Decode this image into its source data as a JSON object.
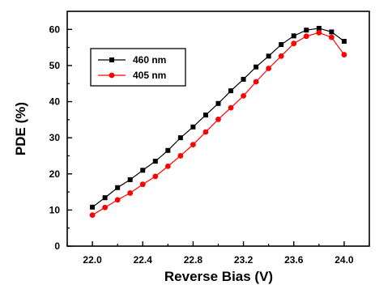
{
  "chart_data": {
    "type": "line",
    "title": "",
    "xlabel": "Reverse Bias (V)",
    "ylabel": "PDE (%)",
    "xlim": [
      21.8,
      24.2
    ],
    "ylim": [
      0,
      65
    ],
    "xticks": [
      22.0,
      22.4,
      22.8,
      23.2,
      23.6,
      24.0
    ],
    "xtick_labels": [
      "22.0",
      "22.4",
      "22.8",
      "23.2",
      "23.6",
      "24.0"
    ],
    "yticks": [
      0,
      10,
      20,
      30,
      40,
      50,
      60
    ],
    "ytick_labels": [
      "0",
      "10",
      "20",
      "30",
      "40",
      "50",
      "60"
    ],
    "grid": false,
    "legend_position": "upper-left",
    "x": [
      22.0,
      22.1,
      22.2,
      22.3,
      22.4,
      22.5,
      22.6,
      22.7,
      22.8,
      22.9,
      23.0,
      23.1,
      23.2,
      23.3,
      23.4,
      23.5,
      23.6,
      23.7,
      23.8,
      23.9,
      24.0
    ],
    "series": [
      {
        "name": "460 nm",
        "color": "#000000",
        "marker": "square",
        "values": [
          10.8,
          13.4,
          16.2,
          18.4,
          21.0,
          23.5,
          26.5,
          30.0,
          33.0,
          36.3,
          39.5,
          43.0,
          46.2,
          49.6,
          52.6,
          55.8,
          58.2,
          59.8,
          60.3,
          59.3,
          56.7
        ]
      },
      {
        "name": "405 nm",
        "color": "#ff0000",
        "marker": "circle",
        "values": [
          8.6,
          10.7,
          12.8,
          14.7,
          17.1,
          19.3,
          22.1,
          25.0,
          28.1,
          31.6,
          35.1,
          38.3,
          41.6,
          45.5,
          49.2,
          52.6,
          56.1,
          58.1,
          59.1,
          57.8,
          53.0
        ]
      }
    ]
  }
}
